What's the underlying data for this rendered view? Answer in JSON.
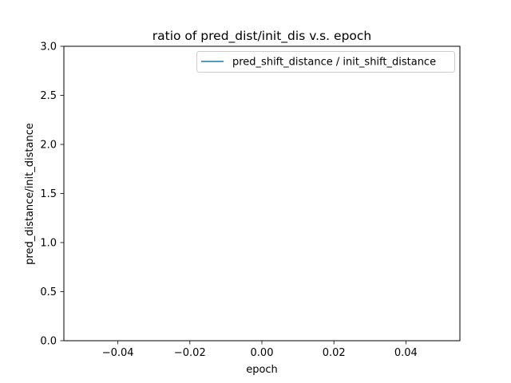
{
  "chart_data": {
    "type": "line",
    "title": "ratio of pred_dist/init_dis v.s. epoch",
    "xlabel": "epoch",
    "ylabel": "pred_distance/init_distance",
    "xlim": [
      -0.055,
      0.055
    ],
    "ylim": [
      0,
      3.0
    ],
    "xticks": [
      -0.04,
      -0.02,
      0.0,
      0.02,
      0.04
    ],
    "xtick_labels": [
      "−0.04",
      "−0.02",
      "0.00",
      "0.02",
      "0.04"
    ],
    "yticks": [
      0.0,
      0.5,
      1.0,
      1.5,
      2.0,
      2.5,
      3.0
    ],
    "ytick_labels": [
      "0.0",
      "0.5",
      "1.0",
      "1.5",
      "2.0",
      "2.5",
      "3.0"
    ],
    "grid": false,
    "legend_position": "upper right",
    "series": [
      {
        "name": "pred_shift_distance / init_shift_distance",
        "color": "#1f77b4",
        "x": [],
        "y": []
      }
    ]
  }
}
